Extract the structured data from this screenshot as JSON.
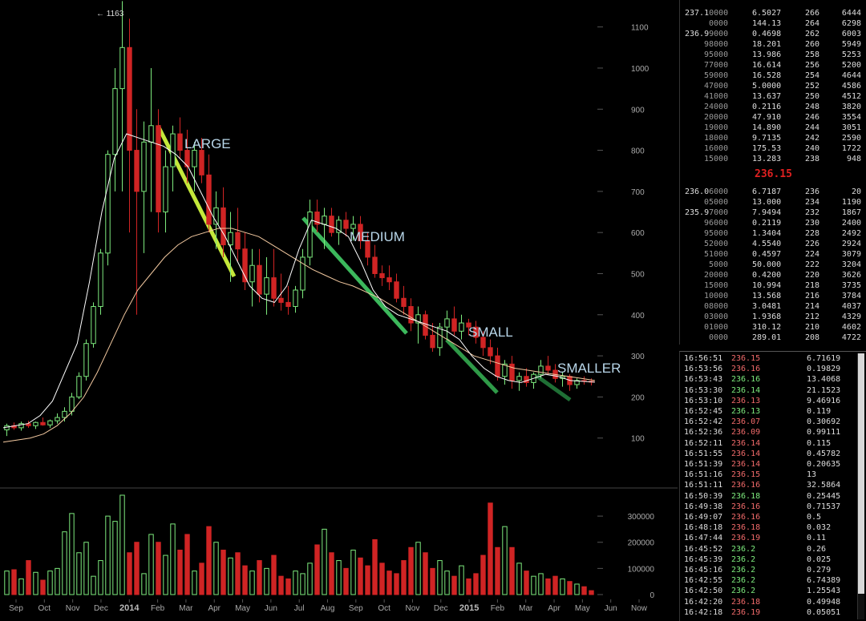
{
  "chart_data": {
    "type": "candlestick",
    "x_labels": [
      "Sep",
      "Oct",
      "Nov",
      "Dec",
      "2014",
      "Feb",
      "Mar",
      "Apr",
      "May",
      "Jun",
      "Jul",
      "Aug",
      "Sep",
      "Oct",
      "Nov",
      "Dec",
      "2015",
      "Feb",
      "Mar",
      "Apr",
      "May",
      "Jun",
      "Now"
    ],
    "bold_labels": [
      "2014",
      "2015"
    ],
    "y_ticks": [
      100,
      200,
      300,
      400,
      500,
      600,
      700,
      800,
      900,
      1000,
      1100
    ],
    "volume_ticks": [
      0,
      100000,
      200000,
      300000
    ],
    "volume_tick_labels": [
      "0",
      "100000",
      "200000",
      "300000"
    ],
    "peak_label": "← 1163",
    "peak_value": 1163,
    "ylim": [
      0,
      1150
    ],
    "volume_ylim": [
      0,
      380000
    ],
    "candles": [
      [
        120,
        135,
        105,
        130
      ],
      [
        130,
        138,
        120,
        125
      ],
      [
        125,
        140,
        118,
        135
      ],
      [
        135,
        142,
        125,
        130
      ],
      [
        130,
        140,
        122,
        138
      ],
      [
        138,
        150,
        130,
        132
      ],
      [
        132,
        145,
        125,
        142
      ],
      [
        142,
        160,
        135,
        150
      ],
      [
        150,
        175,
        140,
        165
      ],
      [
        165,
        210,
        155,
        200
      ],
      [
        200,
        260,
        195,
        250
      ],
      [
        250,
        340,
        240,
        330
      ],
      [
        330,
        430,
        320,
        420
      ],
      [
        420,
        560,
        400,
        550
      ],
      [
        550,
        800,
        520,
        790
      ],
      [
        790,
        1000,
        700,
        950
      ],
      [
        950,
        1163,
        700,
        1050
      ],
      [
        1050,
        1120,
        600,
        800
      ],
      [
        800,
        900,
        400,
        700
      ],
      [
        700,
        870,
        550,
        820
      ],
      [
        820,
        1000,
        650,
        860
      ],
      [
        860,
        900,
        600,
        650
      ],
      [
        650,
        800,
        600,
        760
      ],
      [
        760,
        860,
        700,
        840
      ],
      [
        840,
        880,
        780,
        800
      ],
      [
        800,
        850,
        720,
        760
      ],
      [
        760,
        820,
        700,
        800
      ],
      [
        800,
        830,
        720,
        740
      ],
      [
        740,
        790,
        600,
        620
      ],
      [
        620,
        700,
        560,
        660
      ],
      [
        660,
        710,
        540,
        570
      ],
      [
        570,
        650,
        480,
        600
      ],
      [
        600,
        660,
        530,
        560
      ],
      [
        560,
        600,
        460,
        480
      ],
      [
        480,
        560,
        420,
        520
      ],
      [
        520,
        560,
        430,
        450
      ],
      [
        450,
        540,
        400,
        490
      ],
      [
        490,
        560,
        420,
        440
      ],
      [
        440,
        500,
        410,
        430
      ],
      [
        430,
        470,
        400,
        420
      ],
      [
        420,
        470,
        405,
        460
      ],
      [
        460,
        560,
        440,
        540
      ],
      [
        540,
        680,
        520,
        650
      ],
      [
        650,
        680,
        600,
        620
      ],
      [
        620,
        660,
        560,
        640
      ],
      [
        640,
        660,
        590,
        600
      ],
      [
        600,
        640,
        570,
        630
      ],
      [
        630,
        650,
        590,
        610
      ],
      [
        610,
        640,
        580,
        620
      ],
      [
        620,
        640,
        560,
        580
      ],
      [
        580,
        600,
        520,
        540
      ],
      [
        540,
        570,
        490,
        500
      ],
      [
        500,
        520,
        470,
        490
      ],
      [
        490,
        520,
        460,
        480
      ],
      [
        480,
        500,
        430,
        440
      ],
      [
        440,
        470,
        400,
        420
      ],
      [
        420,
        440,
        360,
        380
      ],
      [
        380,
        420,
        330,
        400
      ],
      [
        400,
        410,
        340,
        350
      ],
      [
        350,
        380,
        310,
        320
      ],
      [
        320,
        380,
        300,
        370
      ],
      [
        370,
        410,
        340,
        390
      ],
      [
        390,
        420,
        350,
        360
      ],
      [
        360,
        400,
        340,
        380
      ],
      [
        380,
        390,
        350,
        370
      ],
      [
        370,
        385,
        330,
        345
      ],
      [
        345,
        360,
        300,
        320
      ],
      [
        320,
        340,
        280,
        300
      ],
      [
        300,
        320,
        240,
        250
      ],
      [
        250,
        290,
        230,
        280
      ],
      [
        280,
        300,
        220,
        240
      ],
      [
        240,
        260,
        215,
        250
      ],
      [
        250,
        270,
        225,
        235
      ],
      [
        235,
        260,
        220,
        255
      ],
      [
        255,
        290,
        245,
        275
      ],
      [
        275,
        300,
        255,
        265
      ],
      [
        265,
        280,
        235,
        245
      ],
      [
        245,
        260,
        225,
        250
      ],
      [
        250,
        255,
        215,
        230
      ],
      [
        230,
        245,
        220,
        240
      ],
      [
        240,
        250,
        230,
        238
      ],
      [
        238,
        245,
        228,
        236
      ]
    ],
    "ma_fast": [
      125,
      130,
      135,
      155,
      190,
      260,
      330,
      480,
      650,
      780,
      840,
      830,
      820,
      810,
      790,
      760,
      700,
      640,
      590,
      530,
      470,
      440,
      430,
      470,
      560,
      630,
      620,
      610,
      590,
      530,
      460,
      420,
      400,
      390,
      380,
      370,
      360,
      340,
      300,
      270,
      250,
      240,
      235,
      245,
      255,
      250,
      240,
      238,
      236
    ],
    "ma_slow": [
      90,
      95,
      100,
      110,
      130,
      160,
      200,
      260,
      330,
      400,
      460,
      500,
      540,
      570,
      590,
      600,
      610,
      610,
      600,
      590,
      570,
      550,
      530,
      510,
      495,
      480,
      470,
      455,
      440,
      420,
      400,
      380,
      360,
      340,
      320,
      300,
      290,
      280,
      270,
      265,
      260,
      255,
      250,
      245,
      240
    ],
    "volumes": [
      90000,
      95000,
      60000,
      130000,
      85000,
      55000,
      90000,
      100000,
      240000,
      310000,
      160000,
      200000,
      70000,
      130000,
      300000,
      280000,
      380000,
      160000,
      200000,
      80000,
      230000,
      200000,
      150000,
      270000,
      170000,
      230000,
      90000,
      120000,
      260000,
      200000,
      170000,
      140000,
      160000,
      110000,
      90000,
      130000,
      100000,
      150000,
      70000,
      60000,
      90000,
      80000,
      120000,
      190000,
      250000,
      160000,
      130000,
      100000,
      170000,
      140000,
      110000,
      210000,
      120000,
      90000,
      80000,
      130000,
      180000,
      200000,
      160000,
      100000,
      130000,
      90000,
      70000,
      110000,
      60000,
      80000,
      150000,
      350000,
      180000,
      260000,
      180000,
      120000,
      90000,
      70000,
      80000,
      60000,
      70000,
      60000,
      50000,
      40000,
      30000,
      15000
    ],
    "annotations": [
      {
        "label": "LARGE",
        "color": "#c4e83a"
      },
      {
        "label": "MEDIUM",
        "color": "#3cb85c"
      },
      {
        "label": "SMALL",
        "color": "#2f9a48"
      },
      {
        "label": "SMALLER",
        "color": "#1f6f35"
      }
    ]
  },
  "orderbook": {
    "asks": [
      [
        "237.1",
        "0000",
        "6.5027",
        "266",
        "6444"
      ],
      [
        "",
        "0000",
        "144.13",
        "264",
        "6298"
      ],
      [
        "236.9",
        "9000",
        "0.4698",
        "262",
        "6003"
      ],
      [
        "",
        "98000",
        "18.201",
        "260",
        "5949"
      ],
      [
        "",
        "95000",
        "13.986",
        "258",
        "5253"
      ],
      [
        "",
        "77000",
        "16.614",
        "256",
        "5200"
      ],
      [
        "",
        "59000",
        "16.528",
        "254",
        "4644"
      ],
      [
        "",
        "47000",
        "5.0000",
        "252",
        "4586"
      ],
      [
        "",
        "41000",
        "13.637",
        "250",
        "4512"
      ],
      [
        "",
        "24000",
        "0.2116",
        "248",
        "3820"
      ],
      [
        "",
        "20000",
        "47.910",
        "246",
        "3554"
      ],
      [
        "",
        "19000",
        "14.890",
        "244",
        "3051"
      ],
      [
        "",
        "18000",
        "9.7135",
        "242",
        "2590"
      ],
      [
        "",
        "16000",
        "175.53",
        "240",
        "1722"
      ],
      [
        "",
        "15000",
        "13.283",
        "238",
        "948"
      ]
    ],
    "last_price": "236.15",
    "bids": [
      [
        "236.0",
        "6000",
        "6.7187",
        "236",
        "20"
      ],
      [
        "",
        "05000",
        "13.000",
        "234",
        "1190"
      ],
      [
        "235.9",
        "7000",
        "7.9494",
        "232",
        "1867"
      ],
      [
        "",
        "96000",
        "0.2119",
        "230",
        "2400"
      ],
      [
        "",
        "95000",
        "1.3404",
        "228",
        "2492"
      ],
      [
        "",
        "52000",
        "4.5540",
        "226",
        "2924"
      ],
      [
        "",
        "51000",
        "0.4597",
        "224",
        "3079"
      ],
      [
        "",
        "5000",
        "50.000",
        "222",
        "3204"
      ],
      [
        "",
        "20000",
        "0.4200",
        "220",
        "3626"
      ],
      [
        "",
        "15000",
        "10.994",
        "218",
        "3735"
      ],
      [
        "",
        "10000",
        "13.568",
        "216",
        "3784"
      ],
      [
        "",
        "08000",
        "3.0481",
        "214",
        "4037"
      ],
      [
        "",
        "03000",
        "1.9368",
        "212",
        "4329"
      ],
      [
        "",
        "01000",
        "310.12",
        "210",
        "4602"
      ],
      [
        "",
        "0000",
        "289.01",
        "208",
        "4722"
      ]
    ]
  },
  "trades": [
    [
      "16:56:51",
      "236.15",
      "down",
      "6.71619"
    ],
    [
      "16:53:56",
      "236.16",
      "down",
      "0.19829"
    ],
    [
      "16:53:43",
      "236.16",
      "up",
      "13.4068"
    ],
    [
      "16:53:30",
      "236.14",
      "up",
      "21.1523"
    ],
    [
      "16:53:10",
      "236.13",
      "down",
      "9.46916"
    ],
    [
      "16:52:45",
      "236.13",
      "up",
      "0.119"
    ],
    [
      "16:52:42",
      "236.07",
      "down",
      "0.30692"
    ],
    [
      "16:52:36",
      "236.09",
      "down",
      "0.99111"
    ],
    [
      "16:52:11",
      "236.14",
      "down",
      "0.115"
    ],
    [
      "16:51:55",
      "236.14",
      "down",
      "0.45782"
    ],
    [
      "16:51:39",
      "236.14",
      "down",
      "0.20635"
    ],
    [
      "16:51:16",
      "236.15",
      "down",
      "13"
    ],
    [
      "16:51:11",
      "236.16",
      "down",
      "32.5864"
    ],
    [
      "16:50:39",
      "236.18",
      "up",
      "0.25445"
    ],
    [
      "16:49:38",
      "236.16",
      "down",
      "0.71537"
    ],
    [
      "16:49:07",
      "236.16",
      "down",
      "0.5"
    ],
    [
      "16:48:18",
      "236.18",
      "down",
      "0.032"
    ],
    [
      "16:47:44",
      "236.19",
      "down",
      "0.11"
    ],
    [
      "16:45:52",
      "236.2",
      "up",
      "0.26"
    ],
    [
      "16:45:39",
      "236.2",
      "up",
      "0.025"
    ],
    [
      "16:45:16",
      "236.2",
      "up",
      "0.279"
    ],
    [
      "16:42:55",
      "236.2",
      "up",
      "6.74389"
    ],
    [
      "16:42:50",
      "236.2",
      "up",
      "1.25543"
    ],
    [
      "16:42:20",
      "236.18",
      "down",
      "0.49948"
    ],
    [
      "16:42:18",
      "236.19",
      "down",
      "0.05051"
    ]
  ],
  "colors": {
    "up": "#7dea7d",
    "down": "#d02424",
    "ma_fast": "#ffffff",
    "ma_slow": "#f3c9a0",
    "grid": "#222"
  }
}
